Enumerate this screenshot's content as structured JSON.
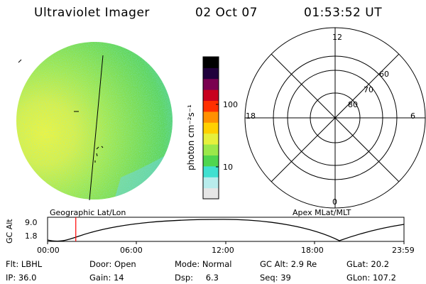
{
  "header": {
    "instrument": "Ultraviolet Imager",
    "date": "02 Oct 07",
    "time": "01:53:52 UT"
  },
  "colorbar": {
    "unit_label": "photon cm⁻²s⁻¹",
    "ticks": [
      {
        "label": "100",
        "value": 100
      },
      {
        "label": "10",
        "value": 10
      }
    ],
    "colors": [
      "#e6e6e6",
      "#b8ecec",
      "#40e0d0",
      "#4fd64f",
      "#9be84a",
      "#e6f03c",
      "#ffd000",
      "#ff9000",
      "#ff3000",
      "#c8001e",
      "#7a0050",
      "#20003c",
      "#000000"
    ]
  },
  "polar_plot": {
    "mlt_labels": {
      "top": "12",
      "left": "18",
      "right": "6",
      "bottom": "0"
    },
    "lat_labels": [
      "60",
      "70",
      "80"
    ]
  },
  "lower_labels": {
    "left": "Geographic Lat/Lon",
    "right": "Apex MLat/MLT"
  },
  "altitude_plot": {
    "ylabel": "GC Alt",
    "yticks": [
      "9.0",
      "1.8"
    ],
    "xticks": [
      "00:00",
      "06:00",
      "12:00",
      "18:00",
      "23:59"
    ],
    "current_time_hours": 1.9,
    "marker_color": "#ff0000"
  },
  "info_row1": [
    {
      "label": "Flt:",
      "value": "LBHL"
    },
    {
      "label": "Door:",
      "value": "Open"
    },
    {
      "label": "Mode:",
      "value": "Normal"
    },
    {
      "label": "GC Alt:",
      "value": "2.9 Re"
    },
    {
      "label": "GLat:",
      "value": "20.2"
    }
  ],
  "info_row2": [
    {
      "label": "IP:",
      "value": "36.0"
    },
    {
      "label": "Gain:",
      "value": "14"
    },
    {
      "label": "Dsp:",
      "value": "6.3"
    },
    {
      "label": "Seq:",
      "value": "39"
    },
    {
      "label": "GLon:",
      "value": "107.2"
    }
  ]
}
